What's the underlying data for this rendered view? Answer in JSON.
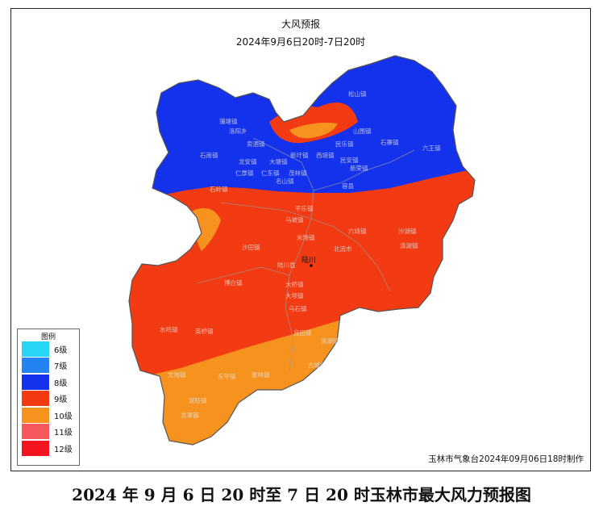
{
  "map": {
    "title": "大风预报",
    "subtitle": "2024年9月6日20时-7日20时",
    "city_label": "陆川",
    "town_labels": [
      "蒲塘镇",
      "洛阳乡",
      "石南镇",
      "卖酒镇",
      "龙安镇",
      "仁厚镇",
      "仁东镇",
      "大塘镇",
      "名山镇",
      "茂林镇",
      "新圩镇",
      "西埌镇",
      "民乐镇",
      "民安镇",
      "新荣镇",
      "山围镇",
      "松山镇",
      "容县",
      "六王镇",
      "石寨镇",
      "石岭镇",
      "平乐镇",
      "马坡镇",
      "米场镇",
      "沙田镇",
      "大桥镇",
      "乌石镇",
      "良田镇",
      "清湖镇",
      "古城镇",
      "北流市",
      "陆川县",
      "博白镇",
      "龙潭镇",
      "大坝镇",
      "沙湖镇",
      "清湖镇",
      "六靖镇",
      "双旺镇",
      "文地镇",
      "水鸣镇",
      "英桥镇",
      "东平镇",
      "那林镇"
    ],
    "colors": {
      "lvl6": "#29d5f5",
      "lvl7": "#2483f2",
      "lvl8": "#1432ec",
      "lvl9": "#f23b12",
      "lvl10": "#f6921e",
      "lvl11": "#f7585d",
      "lvl12": "#f2141e"
    }
  },
  "legend": {
    "title": "图例",
    "items": [
      {
        "label": "6级",
        "color": "#29d5f5"
      },
      {
        "label": "7级",
        "color": "#2483f2"
      },
      {
        "label": "8级",
        "color": "#1432ec"
      },
      {
        "label": "9级",
        "color": "#f23b12"
      },
      {
        "label": "10级",
        "color": "#f6921e"
      },
      {
        "label": "11级",
        "color": "#f7585d"
      },
      {
        "label": "12级",
        "color": "#f2141e"
      }
    ]
  },
  "credit": "玉林市气象台2024年09月06日18时制作",
  "caption": "2024 年 9 月 6 日 20 时至 7 日 20 时玉林市最大风力预报图"
}
